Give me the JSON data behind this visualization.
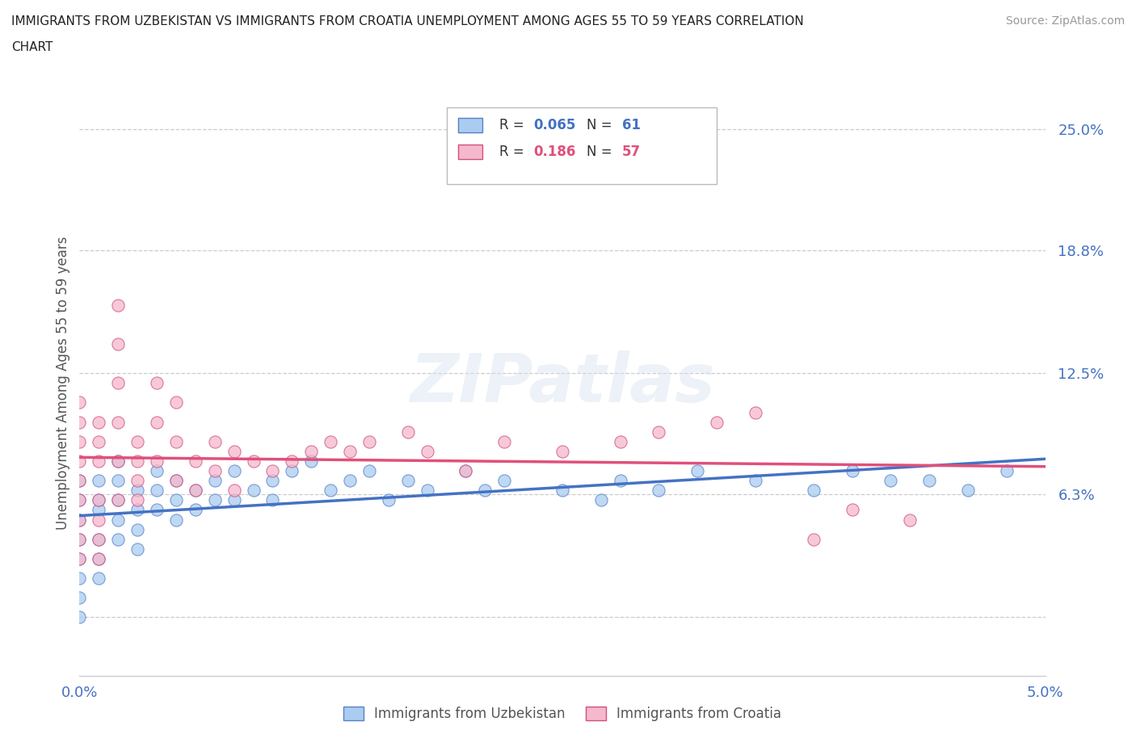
{
  "title_line1": "IMMIGRANTS FROM UZBEKISTAN VS IMMIGRANTS FROM CROATIA UNEMPLOYMENT AMONG AGES 55 TO 59 YEARS CORRELATION",
  "title_line2": "CHART",
  "source": "Source: ZipAtlas.com",
  "ylabel": "Unemployment Among Ages 55 to 59 years",
  "xlim": [
    0.0,
    0.05
  ],
  "ylim": [
    -0.03,
    0.27
  ],
  "yticks": [
    0.0,
    0.063,
    0.125,
    0.188,
    0.25
  ],
  "ytick_labels": [
    "",
    "6.3%",
    "12.5%",
    "18.8%",
    "25.0%"
  ],
  "xticks": [
    0.0,
    0.01,
    0.02,
    0.03,
    0.04,
    0.05
  ],
  "xtick_labels": [
    "0.0%",
    "",
    "",
    "",
    "",
    "5.0%"
  ],
  "uzbekistan_face_color": "#aaccf0",
  "uzbekistan_edge_color": "#5580c8",
  "croatia_face_color": "#f5b8cc",
  "croatia_edge_color": "#d05080",
  "uzbekistan_line_color": "#4472c4",
  "croatia_line_color": "#e0507a",
  "legend_uzbekistan_label": "Immigrants from Uzbekistan",
  "legend_croatia_label": "Immigrants from Croatia",
  "R_uzbekistan": 0.065,
  "N_uzbekistan": 61,
  "R_croatia": 0.186,
  "N_croatia": 57,
  "uzbekistan_scatter_x": [
    0.0,
    0.0,
    0.0,
    0.0,
    0.0,
    0.0,
    0.0,
    0.0,
    0.001,
    0.001,
    0.001,
    0.001,
    0.001,
    0.001,
    0.002,
    0.002,
    0.002,
    0.002,
    0.002,
    0.003,
    0.003,
    0.003,
    0.003,
    0.004,
    0.004,
    0.004,
    0.005,
    0.005,
    0.005,
    0.006,
    0.006,
    0.007,
    0.007,
    0.008,
    0.008,
    0.009,
    0.01,
    0.01,
    0.011,
    0.012,
    0.013,
    0.014,
    0.015,
    0.016,
    0.017,
    0.018,
    0.02,
    0.021,
    0.022,
    0.025,
    0.027,
    0.028,
    0.03,
    0.032,
    0.035,
    0.038,
    0.04,
    0.042,
    0.044,
    0.046,
    0.048
  ],
  "uzbekistan_scatter_y": [
    0.05,
    0.06,
    0.07,
    0.04,
    0.03,
    0.02,
    0.01,
    0.0,
    0.055,
    0.06,
    0.07,
    0.04,
    0.03,
    0.02,
    0.08,
    0.07,
    0.06,
    0.05,
    0.04,
    0.065,
    0.055,
    0.045,
    0.035,
    0.075,
    0.065,
    0.055,
    0.07,
    0.06,
    0.05,
    0.065,
    0.055,
    0.07,
    0.06,
    0.075,
    0.06,
    0.065,
    0.07,
    0.06,
    0.075,
    0.08,
    0.065,
    0.07,
    0.075,
    0.06,
    0.07,
    0.065,
    0.075,
    0.065,
    0.07,
    0.065,
    0.06,
    0.07,
    0.065,
    0.075,
    0.07,
    0.065,
    0.075,
    0.07,
    0.07,
    0.065,
    0.075
  ],
  "croatia_scatter_x": [
    0.0,
    0.0,
    0.0,
    0.0,
    0.0,
    0.0,
    0.0,
    0.0,
    0.0,
    0.001,
    0.001,
    0.001,
    0.001,
    0.001,
    0.001,
    0.001,
    0.002,
    0.002,
    0.002,
    0.002,
    0.002,
    0.002,
    0.003,
    0.003,
    0.003,
    0.003,
    0.004,
    0.004,
    0.004,
    0.005,
    0.005,
    0.005,
    0.006,
    0.006,
    0.007,
    0.007,
    0.008,
    0.008,
    0.009,
    0.01,
    0.011,
    0.012,
    0.013,
    0.014,
    0.015,
    0.017,
    0.018,
    0.02,
    0.022,
    0.025,
    0.028,
    0.03,
    0.033,
    0.035,
    0.038,
    0.04,
    0.043
  ],
  "croatia_scatter_y": [
    0.06,
    0.05,
    0.07,
    0.04,
    0.03,
    0.08,
    0.09,
    0.1,
    0.11,
    0.09,
    0.1,
    0.08,
    0.06,
    0.05,
    0.04,
    0.03,
    0.16,
    0.14,
    0.12,
    0.1,
    0.08,
    0.06,
    0.09,
    0.08,
    0.07,
    0.06,
    0.12,
    0.1,
    0.08,
    0.11,
    0.09,
    0.07,
    0.08,
    0.065,
    0.09,
    0.075,
    0.085,
    0.065,
    0.08,
    0.075,
    0.08,
    0.085,
    0.09,
    0.085,
    0.09,
    0.095,
    0.085,
    0.075,
    0.09,
    0.085,
    0.09,
    0.095,
    0.1,
    0.105,
    0.04,
    0.055,
    0.05
  ],
  "background_color": "#ffffff",
  "grid_color": "#cccccc",
  "watermark_text": "ZIPatlas",
  "watermark_color": "#d8e4f0",
  "watermark_alpha": 0.45
}
